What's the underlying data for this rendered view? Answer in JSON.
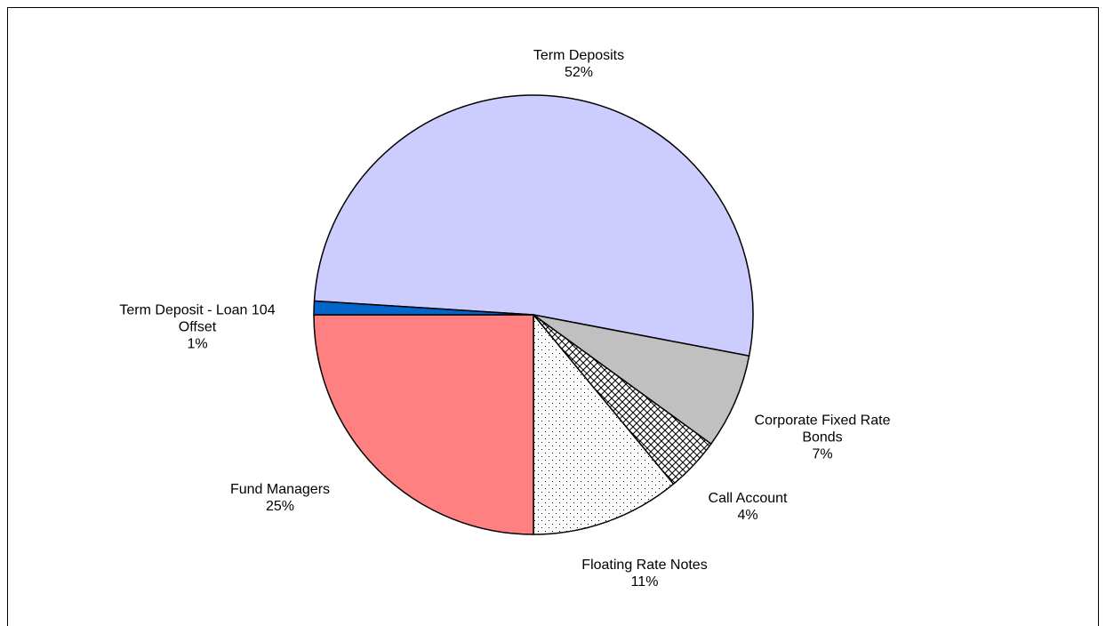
{
  "chart_data": {
    "type": "pie",
    "categories": [
      "Term Deposits",
      "Corporate Fixed Rate Bonds",
      "Call Account",
      "Floating Rate Notes",
      "Fund Managers",
      "Term Deposit - Loan 104 Offset"
    ],
    "values": [
      52,
      7,
      4,
      11,
      25,
      1
    ],
    "value_labels": [
      "52%",
      "7%",
      "4%",
      "11%",
      "25%",
      "1%"
    ],
    "colors": [
      "#ccccff",
      "#c0c0c0",
      "#ffffff",
      "#ffffff",
      "#ff8080",
      "#0066cc"
    ],
    "patterns": [
      null,
      null,
      "crosshatch",
      "dots",
      null,
      null
    ]
  }
}
